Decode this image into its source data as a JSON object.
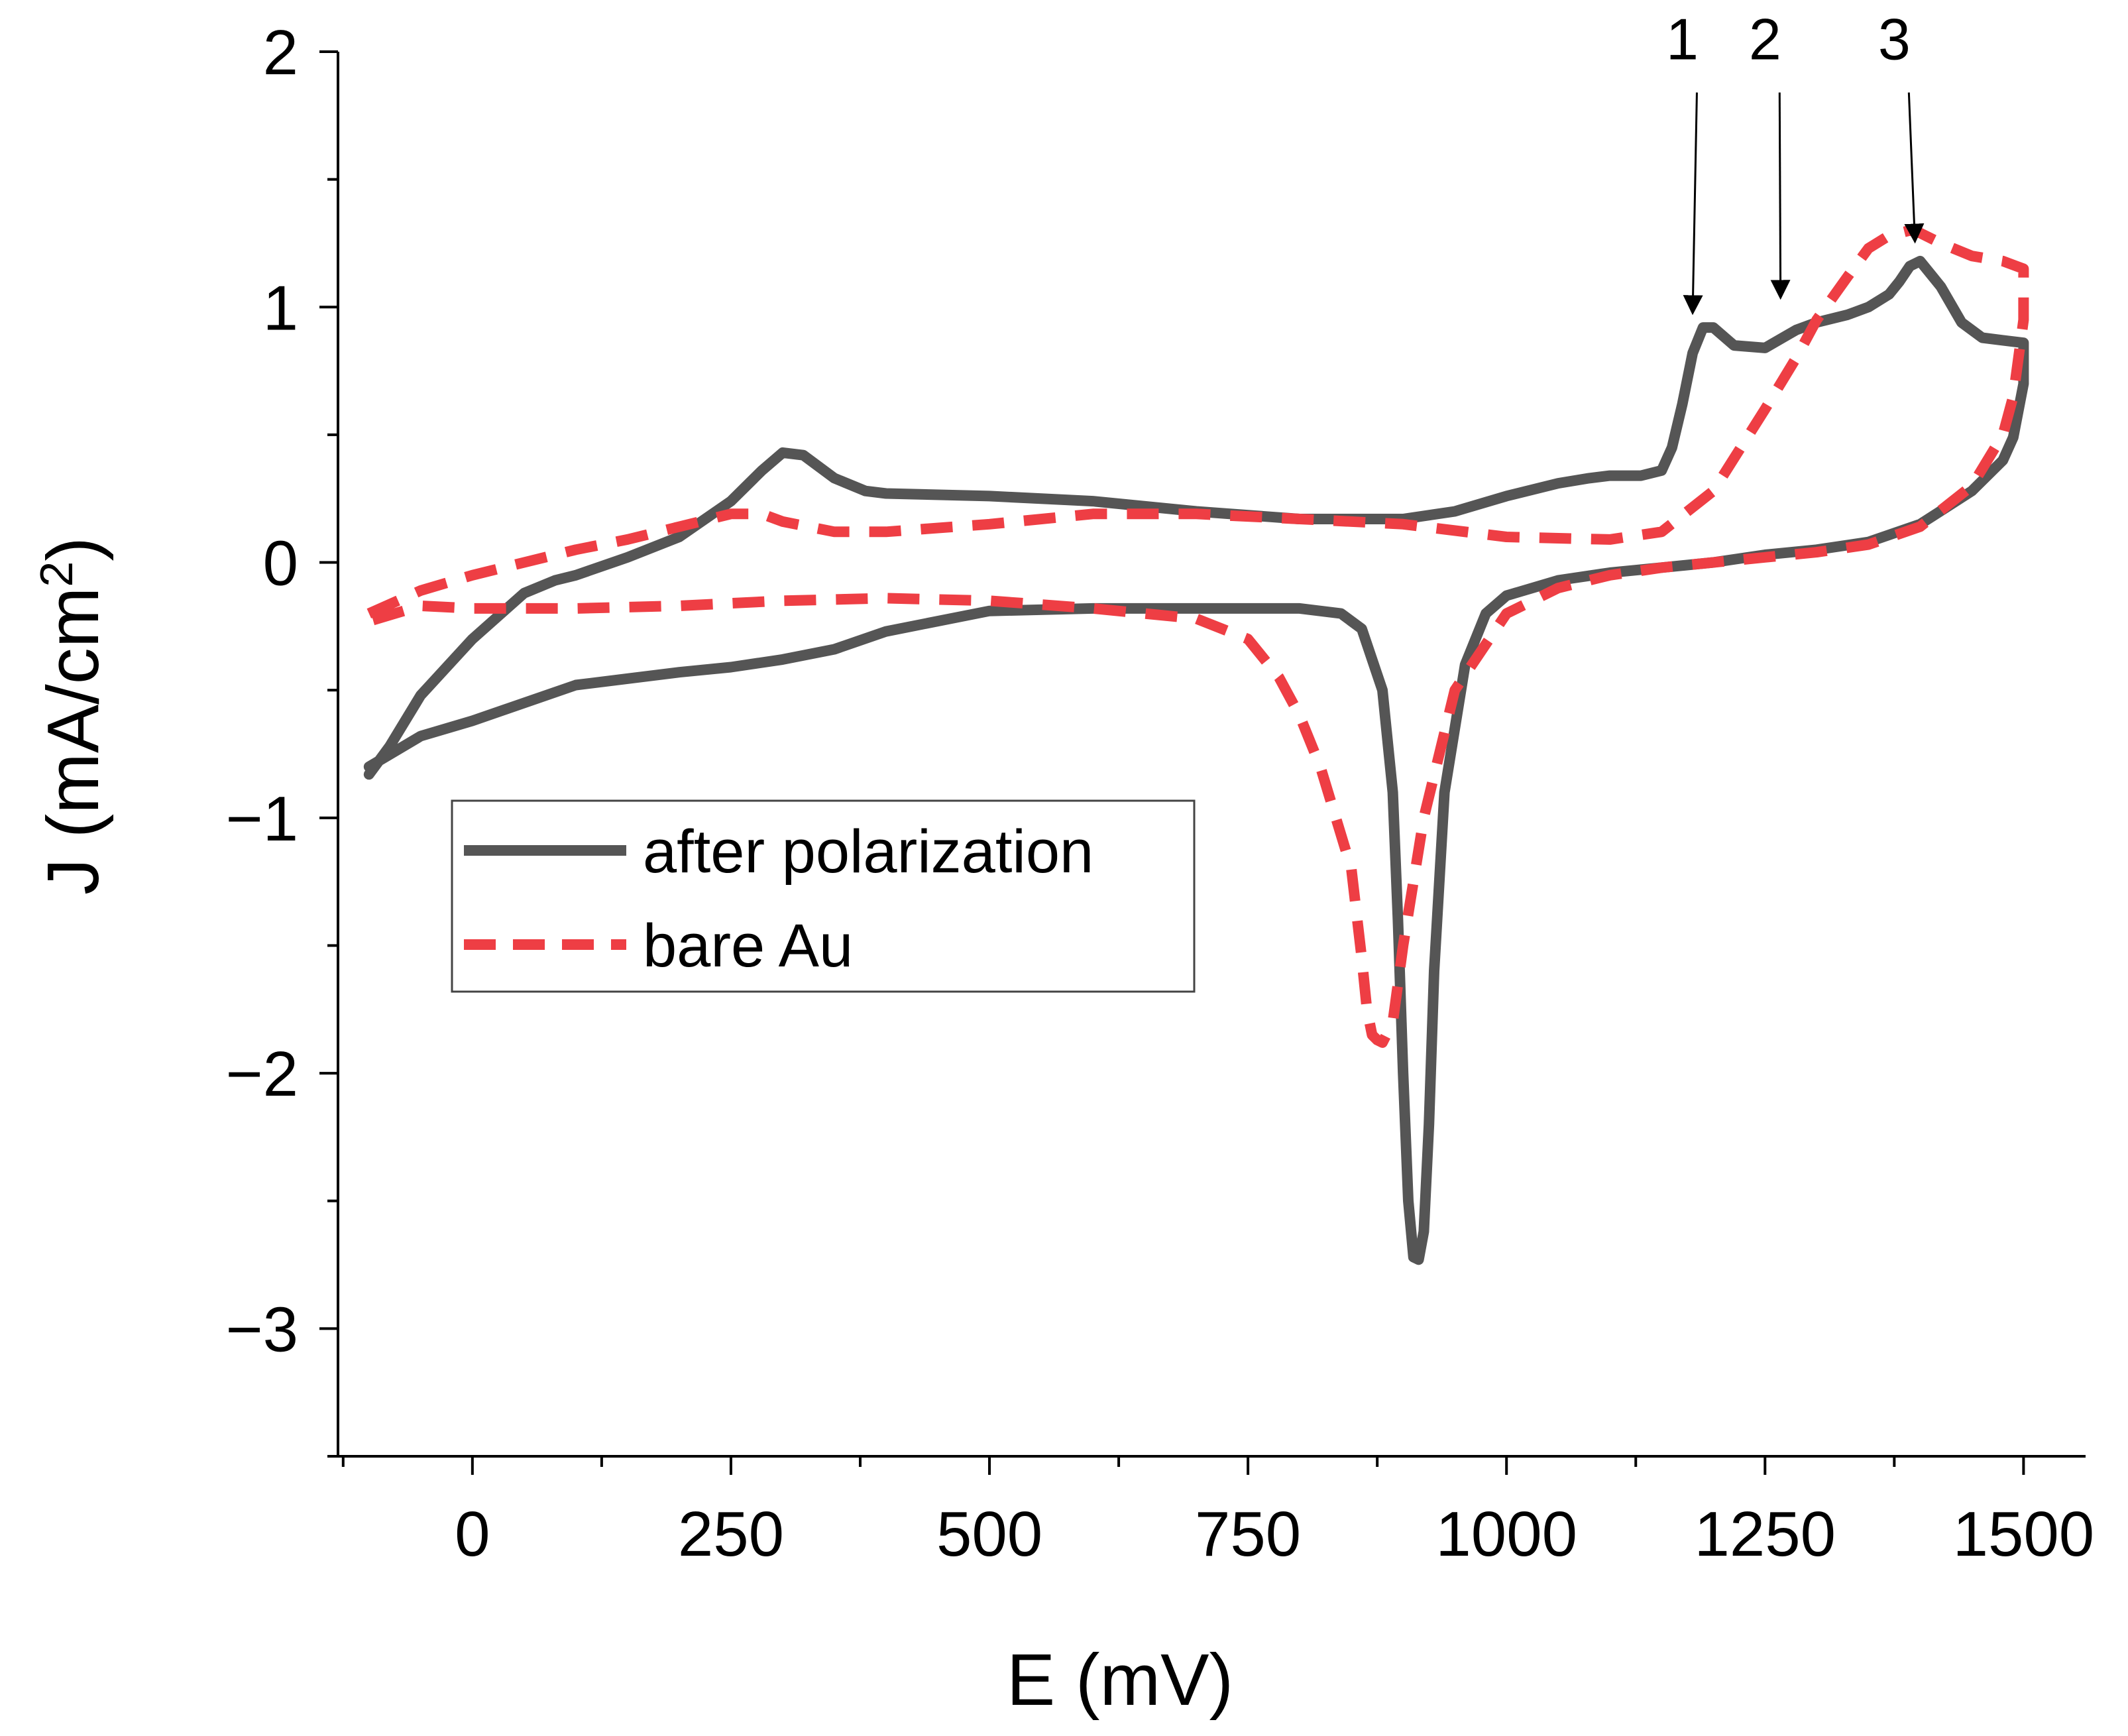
{
  "chart_data": {
    "type": "line",
    "xlabel": "E (mV)",
    "ylabel_main": "J (mA/cm",
    "ylabel_sup": "2",
    "ylabel_close": ")",
    "xlim": [
      -130,
      1560
    ],
    "ylim": [
      -3.5,
      2
    ],
    "x_ticks": [
      {
        "value": 0,
        "label": "0"
      },
      {
        "value": 250,
        "label": "250"
      },
      {
        "value": 500,
        "label": "500"
      },
      {
        "value": 750,
        "label": "750"
      },
      {
        "value": 1000,
        "label": "1000"
      },
      {
        "value": 1250,
        "label": "1250"
      },
      {
        "value": 1500,
        "label": "1500"
      }
    ],
    "x_minor_ticks": [
      -125,
      125,
      375,
      625,
      875,
      1125,
      1375
    ],
    "y_ticks": [
      {
        "value": 2,
        "label": "2"
      },
      {
        "value": 1,
        "label": "1"
      },
      {
        "value": 0,
        "label": "0"
      },
      {
        "value": -1,
        "label": "−1"
      },
      {
        "value": -2,
        "label": "−2"
      },
      {
        "value": -3,
        "label": "−3"
      }
    ],
    "y_minor_ticks": [
      1.5,
      0.5,
      -0.5,
      -1.5,
      -2.5,
      -3.5
    ],
    "grid": false,
    "legend_position": "middle-left",
    "series": [
      {
        "name": "after polarization",
        "color": "#555555",
        "style": "solid",
        "x": [
          -100,
          -80,
          -50,
          0,
          50,
          80,
          100,
          150,
          200,
          250,
          280,
          300,
          320,
          350,
          380,
          400,
          500,
          600,
          700,
          800,
          900,
          950,
          1000,
          1050,
          1080,
          1100,
          1130,
          1150,
          1160,
          1170,
          1180,
          1190,
          1200,
          1220,
          1250,
          1280,
          1300,
          1330,
          1350,
          1370,
          1380,
          1390,
          1400,
          1420,
          1440,
          1460,
          1480,
          1500,
          1500,
          1490,
          1480,
          1450,
          1400,
          1350,
          1300,
          1250,
          1200,
          1150,
          1100,
          1050,
          1000,
          980,
          960,
          940,
          930,
          925,
          920,
          915,
          910,
          905,
          900,
          895,
          890,
          880,
          860,
          840,
          800,
          750,
          700,
          600,
          500,
          400,
          350,
          300,
          250,
          200,
          100,
          0,
          -50,
          -100
        ],
        "y": [
          -0.83,
          -0.72,
          -0.52,
          -0.3,
          -0.12,
          -0.07,
          -0.05,
          0.02,
          0.1,
          0.24,
          0.36,
          0.43,
          0.42,
          0.33,
          0.28,
          0.27,
          0.26,
          0.24,
          0.2,
          0.17,
          0.17,
          0.2,
          0.26,
          0.31,
          0.33,
          0.34,
          0.34,
          0.36,
          0.45,
          0.62,
          0.82,
          0.92,
          0.92,
          0.85,
          0.84,
          0.91,
          0.94,
          0.97,
          1.0,
          1.05,
          1.1,
          1.16,
          1.18,
          1.08,
          0.94,
          0.88,
          0.87,
          0.86,
          0.7,
          0.49,
          0.4,
          0.28,
          0.15,
          0.08,
          0.05,
          0.03,
          0.0,
          -0.02,
          -0.04,
          -0.07,
          -0.13,
          -0.2,
          -0.4,
          -0.9,
          -1.6,
          -2.2,
          -2.62,
          -2.73,
          -2.72,
          -2.5,
          -2.0,
          -1.4,
          -0.9,
          -0.5,
          -0.26,
          -0.2,
          -0.18,
          -0.18,
          -0.18,
          -0.18,
          -0.19,
          -0.27,
          -0.34,
          -0.38,
          -0.41,
          -0.43,
          -0.48,
          -0.62,
          -0.68,
          -0.8
        ]
      },
      {
        "name": "bare Au",
        "color": "#ee3e44",
        "style": "dashed",
        "x": [
          -100,
          -50,
          0,
          50,
          100,
          150,
          200,
          250,
          280,
          300,
          350,
          400,
          500,
          600,
          700,
          800,
          900,
          1000,
          1100,
          1150,
          1200,
          1250,
          1280,
          1300,
          1330,
          1350,
          1370,
          1390,
          1400,
          1420,
          1450,
          1480,
          1500,
          1500,
          1490,
          1480,
          1450,
          1400,
          1350,
          1300,
          1250,
          1200,
          1150,
          1100,
          1050,
          1000,
          950,
          920,
          900,
          890,
          880,
          875,
          870,
          865,
          860,
          850,
          820,
          800,
          780,
          750,
          700,
          650,
          600,
          500,
          400,
          300,
          200,
          100,
          0,
          -50,
          -100
        ],
        "y": [
          -0.2,
          -0.11,
          -0.05,
          0.0,
          0.05,
          0.09,
          0.14,
          0.19,
          0.19,
          0.16,
          0.12,
          0.12,
          0.15,
          0.19,
          0.19,
          0.17,
          0.15,
          0.1,
          0.09,
          0.12,
          0.28,
          0.6,
          0.8,
          0.95,
          1.12,
          1.23,
          1.28,
          1.3,
          1.29,
          1.25,
          1.2,
          1.18,
          1.15,
          0.95,
          0.65,
          0.5,
          0.3,
          0.14,
          0.07,
          0.04,
          0.02,
          0.0,
          -0.02,
          -0.05,
          -0.1,
          -0.2,
          -0.5,
          -1.0,
          -1.5,
          -1.8,
          -1.88,
          -1.87,
          -1.85,
          -1.75,
          -1.55,
          -1.2,
          -0.8,
          -0.6,
          -0.45,
          -0.3,
          -0.22,
          -0.2,
          -0.18,
          -0.15,
          -0.14,
          -0.15,
          -0.17,
          -0.18,
          -0.18,
          -0.17,
          -0.23
        ]
      }
    ],
    "annotations": [
      {
        "label": "1",
        "target_x": 1180,
        "target_y": 0.94,
        "text_x": 1170,
        "text_y": 1.97
      },
      {
        "label": "2",
        "target_x": 1265,
        "target_y": 1.0,
        "text_x": 1250,
        "text_y": 1.97
      },
      {
        "label": "3",
        "target_x": 1395,
        "target_y": 1.22,
        "text_x": 1375,
        "text_y": 1.97
      }
    ]
  }
}
